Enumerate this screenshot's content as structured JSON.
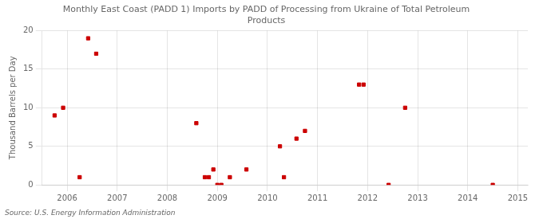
{
  "chart_data": {
    "type": "scatter",
    "title": "Monthly East Coast (PADD 1) Imports by PADD of Processing from Ukraine of Total Petroleum\nProducts",
    "ylabel": "Thousand Barrels per Day",
    "source": "Source: U.S. Energy Information Administration",
    "color": "#cc0000",
    "marker": "square",
    "x": [
      2005.75,
      2005.92,
      2006.25,
      2006.42,
      2006.58,
      2008.58,
      2008.75,
      2008.83,
      2008.92,
      2009.0,
      2009.08,
      2009.25,
      2009.58,
      2010.25,
      2010.33,
      2010.58,
      2010.75,
      2011.83,
      2011.92,
      2012.42,
      2012.75,
      2014.5
    ],
    "values": [
      9.0,
      10.0,
      1.0,
      19.0,
      17.0,
      8.0,
      1.0,
      1.0,
      2.0,
      0.0,
      0.0,
      1.0,
      2.0,
      5.0,
      1.0,
      6.0,
      7.0,
      13.0,
      13.0,
      0.0,
      10.0,
      0.0
    ],
    "xlim": [
      2005.5,
      2015.2
    ],
    "ylim": [
      0,
      20
    ],
    "xticks": [
      2006,
      2007,
      2008,
      2009,
      2010,
      2011,
      2012,
      2013,
      2014,
      2015
    ],
    "yticks": [
      0,
      5,
      10,
      15,
      20
    ],
    "grid": true
  }
}
